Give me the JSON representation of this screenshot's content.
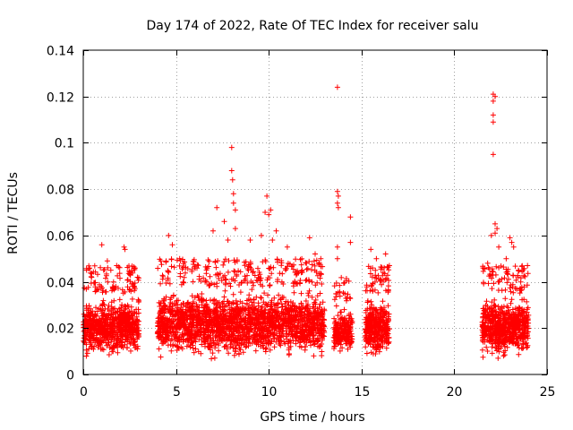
{
  "chart_data": {
    "type": "scatter",
    "title": "Day 174 of 2022, Rate Of TEC Index for receiver salu",
    "xlabel": "GPS time / hours",
    "ylabel": "ROTI / TECUs",
    "xlim": [
      0,
      25
    ],
    "ylim": [
      0,
      0.14
    ],
    "x_ticks": [
      0,
      5,
      10,
      15,
      20,
      25
    ],
    "x_tick_labels": [
      "0",
      "5",
      "10",
      "15",
      "20",
      "25"
    ],
    "y_ticks": [
      0,
      0.02,
      0.04,
      0.06,
      0.08,
      0.1,
      0.12,
      0.14
    ],
    "y_tick_labels": [
      "0",
      "0.02",
      "0.04",
      "0.06",
      "0.08",
      "0.1",
      "0.12",
      "0.14"
    ],
    "grid": true,
    "marker": "plus",
    "color": "#ff0000",
    "series": [
      {
        "name": "ROTI",
        "clusters": [
          {
            "x_range": [
              0.0,
              3.0
            ],
            "y_range": [
              0.006,
              0.035
            ],
            "count": 700
          },
          {
            "x_range": [
              4.0,
              13.0
            ],
            "y_range": [
              0.006,
              0.038
            ],
            "count": 2000
          },
          {
            "x_range": [
              13.5,
              14.5
            ],
            "y_range": [
              0.007,
              0.03
            ],
            "count": 200
          },
          {
            "x_range": [
              15.2,
              16.5
            ],
            "y_range": [
              0.006,
              0.035
            ],
            "count": 350
          },
          {
            "x_range": [
              21.5,
              24.0
            ],
            "y_range": [
              0.006,
              0.035
            ],
            "count": 650
          }
        ],
        "outliers": [
          {
            "x": 1.0,
            "y": 0.056
          },
          {
            "x": 1.3,
            "y": 0.049
          },
          {
            "x": 1.8,
            "y": 0.047
          },
          {
            "x": 2.2,
            "y": 0.055
          },
          {
            "x": 2.25,
            "y": 0.054
          },
          {
            "x": 4.6,
            "y": 0.06
          },
          {
            "x": 4.8,
            "y": 0.056
          },
          {
            "x": 5.2,
            "y": 0.05
          },
          {
            "x": 7.0,
            "y": 0.062
          },
          {
            "x": 7.2,
            "y": 0.072
          },
          {
            "x": 7.6,
            "y": 0.066
          },
          {
            "x": 7.8,
            "y": 0.058
          },
          {
            "x": 8.0,
            "y": 0.098
          },
          {
            "x": 8.0,
            "y": 0.088
          },
          {
            "x": 8.05,
            "y": 0.084
          },
          {
            "x": 8.1,
            "y": 0.078
          },
          {
            "x": 8.1,
            "y": 0.074
          },
          {
            "x": 8.2,
            "y": 0.071
          },
          {
            "x": 8.2,
            "y": 0.063
          },
          {
            "x": 9.0,
            "y": 0.058
          },
          {
            "x": 9.6,
            "y": 0.06
          },
          {
            "x": 9.9,
            "y": 0.077
          },
          {
            "x": 9.8,
            "y": 0.07
          },
          {
            "x": 10.0,
            "y": 0.069
          },
          {
            "x": 10.1,
            "y": 0.071
          },
          {
            "x": 10.2,
            "y": 0.058
          },
          {
            "x": 10.4,
            "y": 0.062
          },
          {
            "x": 11.0,
            "y": 0.055
          },
          {
            "x": 12.2,
            "y": 0.059
          },
          {
            "x": 12.5,
            "y": 0.052
          },
          {
            "x": 13.7,
            "y": 0.124
          },
          {
            "x": 13.7,
            "y": 0.079
          },
          {
            "x": 13.75,
            "y": 0.077
          },
          {
            "x": 13.7,
            "y": 0.074
          },
          {
            "x": 13.75,
            "y": 0.072
          },
          {
            "x": 13.7,
            "y": 0.055
          },
          {
            "x": 13.7,
            "y": 0.05
          },
          {
            "x": 14.4,
            "y": 0.068
          },
          {
            "x": 14.4,
            "y": 0.057
          },
          {
            "x": 15.5,
            "y": 0.054
          },
          {
            "x": 15.8,
            "y": 0.05
          },
          {
            "x": 16.3,
            "y": 0.052
          },
          {
            "x": 16.5,
            "y": 0.047
          },
          {
            "x": 22.1,
            "y": 0.121
          },
          {
            "x": 22.2,
            "y": 0.12
          },
          {
            "x": 22.1,
            "y": 0.118
          },
          {
            "x": 22.1,
            "y": 0.112
          },
          {
            "x": 22.1,
            "y": 0.109
          },
          {
            "x": 22.1,
            "y": 0.095
          },
          {
            "x": 22.2,
            "y": 0.065
          },
          {
            "x": 22.3,
            "y": 0.063
          },
          {
            "x": 22.2,
            "y": 0.061
          },
          {
            "x": 22.0,
            "y": 0.06
          },
          {
            "x": 22.4,
            "y": 0.055
          },
          {
            "x": 23.0,
            "y": 0.059
          },
          {
            "x": 23.1,
            "y": 0.057
          },
          {
            "x": 23.2,
            "y": 0.055
          },
          {
            "x": 22.8,
            "y": 0.05
          },
          {
            "x": 21.8,
            "y": 0.048
          }
        ]
      }
    ]
  }
}
